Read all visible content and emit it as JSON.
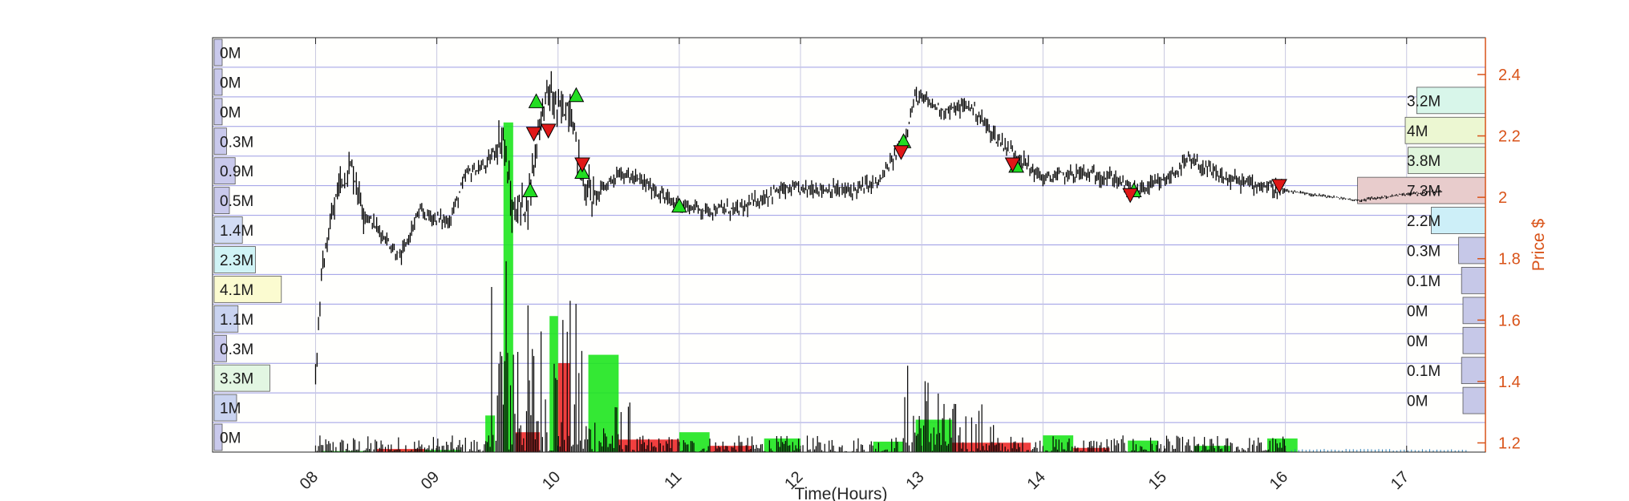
{
  "chart_data": {
    "type": "candlestick-with-volume-profile",
    "xlabel": "Time(Hours)",
    "ylabel": "Price $",
    "x_ticks": [
      "08",
      "09",
      "10",
      "11",
      "12",
      "13",
      "14",
      "15",
      "16",
      "17"
    ],
    "x_range": [
      7.15,
      17.65
    ],
    "y_ticks": [
      "1.2",
      "1.4",
      "1.6",
      "1.8",
      "2",
      "2.2",
      "2.4"
    ],
    "y_range": [
      1.17,
      2.52
    ],
    "y_axis_side": "right",
    "grid": true,
    "price_anchors": [
      {
        "t": 8.0,
        "p": 1.42
      },
      {
        "t": 8.05,
        "p": 1.75
      },
      {
        "t": 8.12,
        "p": 1.9
      },
      {
        "t": 8.2,
        "p": 2.05
      },
      {
        "t": 8.3,
        "p": 2.1
      },
      {
        "t": 8.4,
        "p": 1.95
      },
      {
        "t": 8.55,
        "p": 1.88
      },
      {
        "t": 8.7,
        "p": 1.8
      },
      {
        "t": 8.85,
        "p": 1.95
      },
      {
        "t": 9.1,
        "p": 1.92
      },
      {
        "t": 9.25,
        "p": 2.08
      },
      {
        "t": 9.4,
        "p": 2.1
      },
      {
        "t": 9.55,
        "p": 2.2
      },
      {
        "t": 9.62,
        "p": 1.95
      },
      {
        "t": 9.75,
        "p": 1.98
      },
      {
        "t": 9.85,
        "p": 2.25
      },
      {
        "t": 9.92,
        "p": 2.35
      },
      {
        "t": 10.0,
        "p": 2.28
      },
      {
        "t": 10.1,
        "p": 2.3
      },
      {
        "t": 10.2,
        "p": 2.05
      },
      {
        "t": 10.3,
        "p": 2.0
      },
      {
        "t": 10.5,
        "p": 2.08
      },
      {
        "t": 10.7,
        "p": 2.05
      },
      {
        "t": 10.95,
        "p": 1.98
      },
      {
        "t": 11.2,
        "p": 1.96
      },
      {
        "t": 11.5,
        "p": 1.96
      },
      {
        "t": 11.8,
        "p": 2.02
      },
      {
        "t": 12.1,
        "p": 2.03
      },
      {
        "t": 12.4,
        "p": 2.02
      },
      {
        "t": 12.65,
        "p": 2.05
      },
      {
        "t": 12.85,
        "p": 2.18
      },
      {
        "t": 12.95,
        "p": 2.33
      },
      {
        "t": 13.2,
        "p": 2.28
      },
      {
        "t": 13.4,
        "p": 2.3
      },
      {
        "t": 13.6,
        "p": 2.2
      },
      {
        "t": 13.8,
        "p": 2.13
      },
      {
        "t": 14.0,
        "p": 2.06
      },
      {
        "t": 14.3,
        "p": 2.08
      },
      {
        "t": 14.6,
        "p": 2.06
      },
      {
        "t": 14.75,
        "p": 2.02
      },
      {
        "t": 15.0,
        "p": 2.05
      },
      {
        "t": 15.2,
        "p": 2.12
      },
      {
        "t": 15.5,
        "p": 2.06
      },
      {
        "t": 15.8,
        "p": 2.04
      },
      {
        "t": 16.0,
        "p": 2.02
      },
      {
        "t": 16.4,
        "p": 2.0
      },
      {
        "t": 16.6,
        "p": 1.99
      },
      {
        "t": 17.0,
        "p": 2.01
      },
      {
        "t": 17.3,
        "p": 2.02
      }
    ],
    "volume_bars_green": [
      {
        "t0": 8.05,
        "t1": 8.45,
        "v": 0.1
      },
      {
        "t0": 8.6,
        "t1": 9.2,
        "v": 0.2
      },
      {
        "t0": 9.4,
        "t1": 9.48,
        "v": 3.5
      },
      {
        "t0": 9.55,
        "t1": 9.63,
        "v": 31.5
      },
      {
        "t0": 9.93,
        "t1": 10.0,
        "v": 13.0
      },
      {
        "t0": 10.25,
        "t1": 10.5,
        "v": 9.3
      },
      {
        "t0": 11.0,
        "t1": 11.25,
        "v": 1.9
      },
      {
        "t0": 11.7,
        "t1": 12.0,
        "v": 1.3
      },
      {
        "t0": 12.6,
        "t1": 12.85,
        "v": 1.0
      },
      {
        "t0": 12.95,
        "t1": 13.25,
        "v": 3.1
      },
      {
        "t0": 14.0,
        "t1": 14.25,
        "v": 1.6
      },
      {
        "t0": 14.7,
        "t1": 14.95,
        "v": 1.1
      },
      {
        "t0": 15.25,
        "t1": 15.55,
        "v": 0.6
      },
      {
        "t0": 15.85,
        "t1": 16.1,
        "v": 1.3
      }
    ],
    "volume_bars_red": [
      {
        "t0": 8.5,
        "t1": 8.9,
        "v": 0.3
      },
      {
        "t0": 9.65,
        "t1": 9.85,
        "v": 1.9
      },
      {
        "t0": 10.0,
        "t1": 10.1,
        "v": 8.5
      },
      {
        "t0": 10.5,
        "t1": 11.0,
        "v": 1.2
      },
      {
        "t0": 11.25,
        "t1": 11.6,
        "v": 0.6
      },
      {
        "t0": 13.25,
        "t1": 13.9,
        "v": 0.9
      },
      {
        "t0": 14.25,
        "t1": 14.55,
        "v": 0.4
      }
    ],
    "buy_markers": [
      {
        "t": 9.77,
        "p": 2.02
      },
      {
        "t": 9.82,
        "p": 2.31
      },
      {
        "t": 10.15,
        "p": 2.33
      },
      {
        "t": 10.2,
        "p": 2.08
      },
      {
        "t": 11.0,
        "p": 1.97
      },
      {
        "t": 12.85,
        "p": 2.18
      },
      {
        "t": 13.78,
        "p": 2.1
      },
      {
        "t": 14.75,
        "p": 2.02
      }
    ],
    "sell_markers": [
      {
        "t": 9.8,
        "p": 2.21
      },
      {
        "t": 9.92,
        "p": 2.22
      },
      {
        "t": 10.2,
        "p": 2.11
      },
      {
        "t": 12.83,
        "p": 2.15
      },
      {
        "t": 13.75,
        "p": 2.11
      },
      {
        "t": 14.72,
        "p": 2.01
      },
      {
        "t": 15.95,
        "p": 2.04
      }
    ],
    "left_volume_profile": [
      {
        "label": "0M",
        "value": 0,
        "color": "#c9c9ec"
      },
      {
        "label": "0M",
        "value": 0,
        "color": "#c9c9ec"
      },
      {
        "label": "0M",
        "value": 0,
        "color": "#c9c9ec"
      },
      {
        "label": "0.3M",
        "value": 0.3,
        "color": "#c9c9ec"
      },
      {
        "label": "0.9M",
        "value": 0.9,
        "color": "#c9c9ec"
      },
      {
        "label": "0.5M",
        "value": 0.5,
        "color": "#c9c9ec"
      },
      {
        "label": "1.4M",
        "value": 1.4,
        "color": "#d2dcf4"
      },
      {
        "label": "2.3M",
        "value": 2.3,
        "color": "#d0f4f6"
      },
      {
        "label": "4.1M",
        "value": 4.1,
        "color": "#fbfbd0"
      },
      {
        "label": "1.1M",
        "value": 1.1,
        "color": "#c9d3f0"
      },
      {
        "label": "0.3M",
        "value": 0.3,
        "color": "#c9c9ec"
      },
      {
        "label": "3.3M",
        "value": 3.3,
        "color": "#e2f6e2"
      },
      {
        "label": "1M",
        "value": 1.0,
        "color": "#c9d3f0"
      },
      {
        "label": "0M",
        "value": 0,
        "color": "#c9c9ec"
      }
    ],
    "right_volume_profile": [
      {
        "label": "3.2M",
        "value": 3.2,
        "color": "#d8f6ea"
      },
      {
        "label": "4M",
        "value": 4.0,
        "color": "#ecf7d2"
      },
      {
        "label": "3.8M",
        "value": 3.8,
        "color": "#e0f5dc"
      },
      {
        "label": "7.3M",
        "value": 7.3,
        "color": "#e8cccc"
      },
      {
        "label": "2.2M",
        "value": 2.2,
        "color": "#cdeff8"
      },
      {
        "label": "0.3M",
        "value": 0.3,
        "color": "#c6c8e8"
      },
      {
        "label": "0.1M",
        "value": 0.1,
        "color": "#c6c8e8"
      },
      {
        "label": "0M",
        "value": 0,
        "color": "#c6c8e8"
      },
      {
        "label": "0M",
        "value": 0,
        "color": "#c6c8e8"
      },
      {
        "label": "0.1M",
        "value": 0.1,
        "color": "#c6c8e8"
      },
      {
        "label": "0M",
        "value": 0,
        "color": "#c6c8e8"
      }
    ],
    "colors": {
      "price_axis": "#d95319",
      "grid_line": "#7b7bdc",
      "candles": "#000000",
      "volume_up": "#1ee61e",
      "volume_down": "#ee2a2a",
      "buy_marker": "#22dd22",
      "sell_marker": "#e01818"
    }
  }
}
